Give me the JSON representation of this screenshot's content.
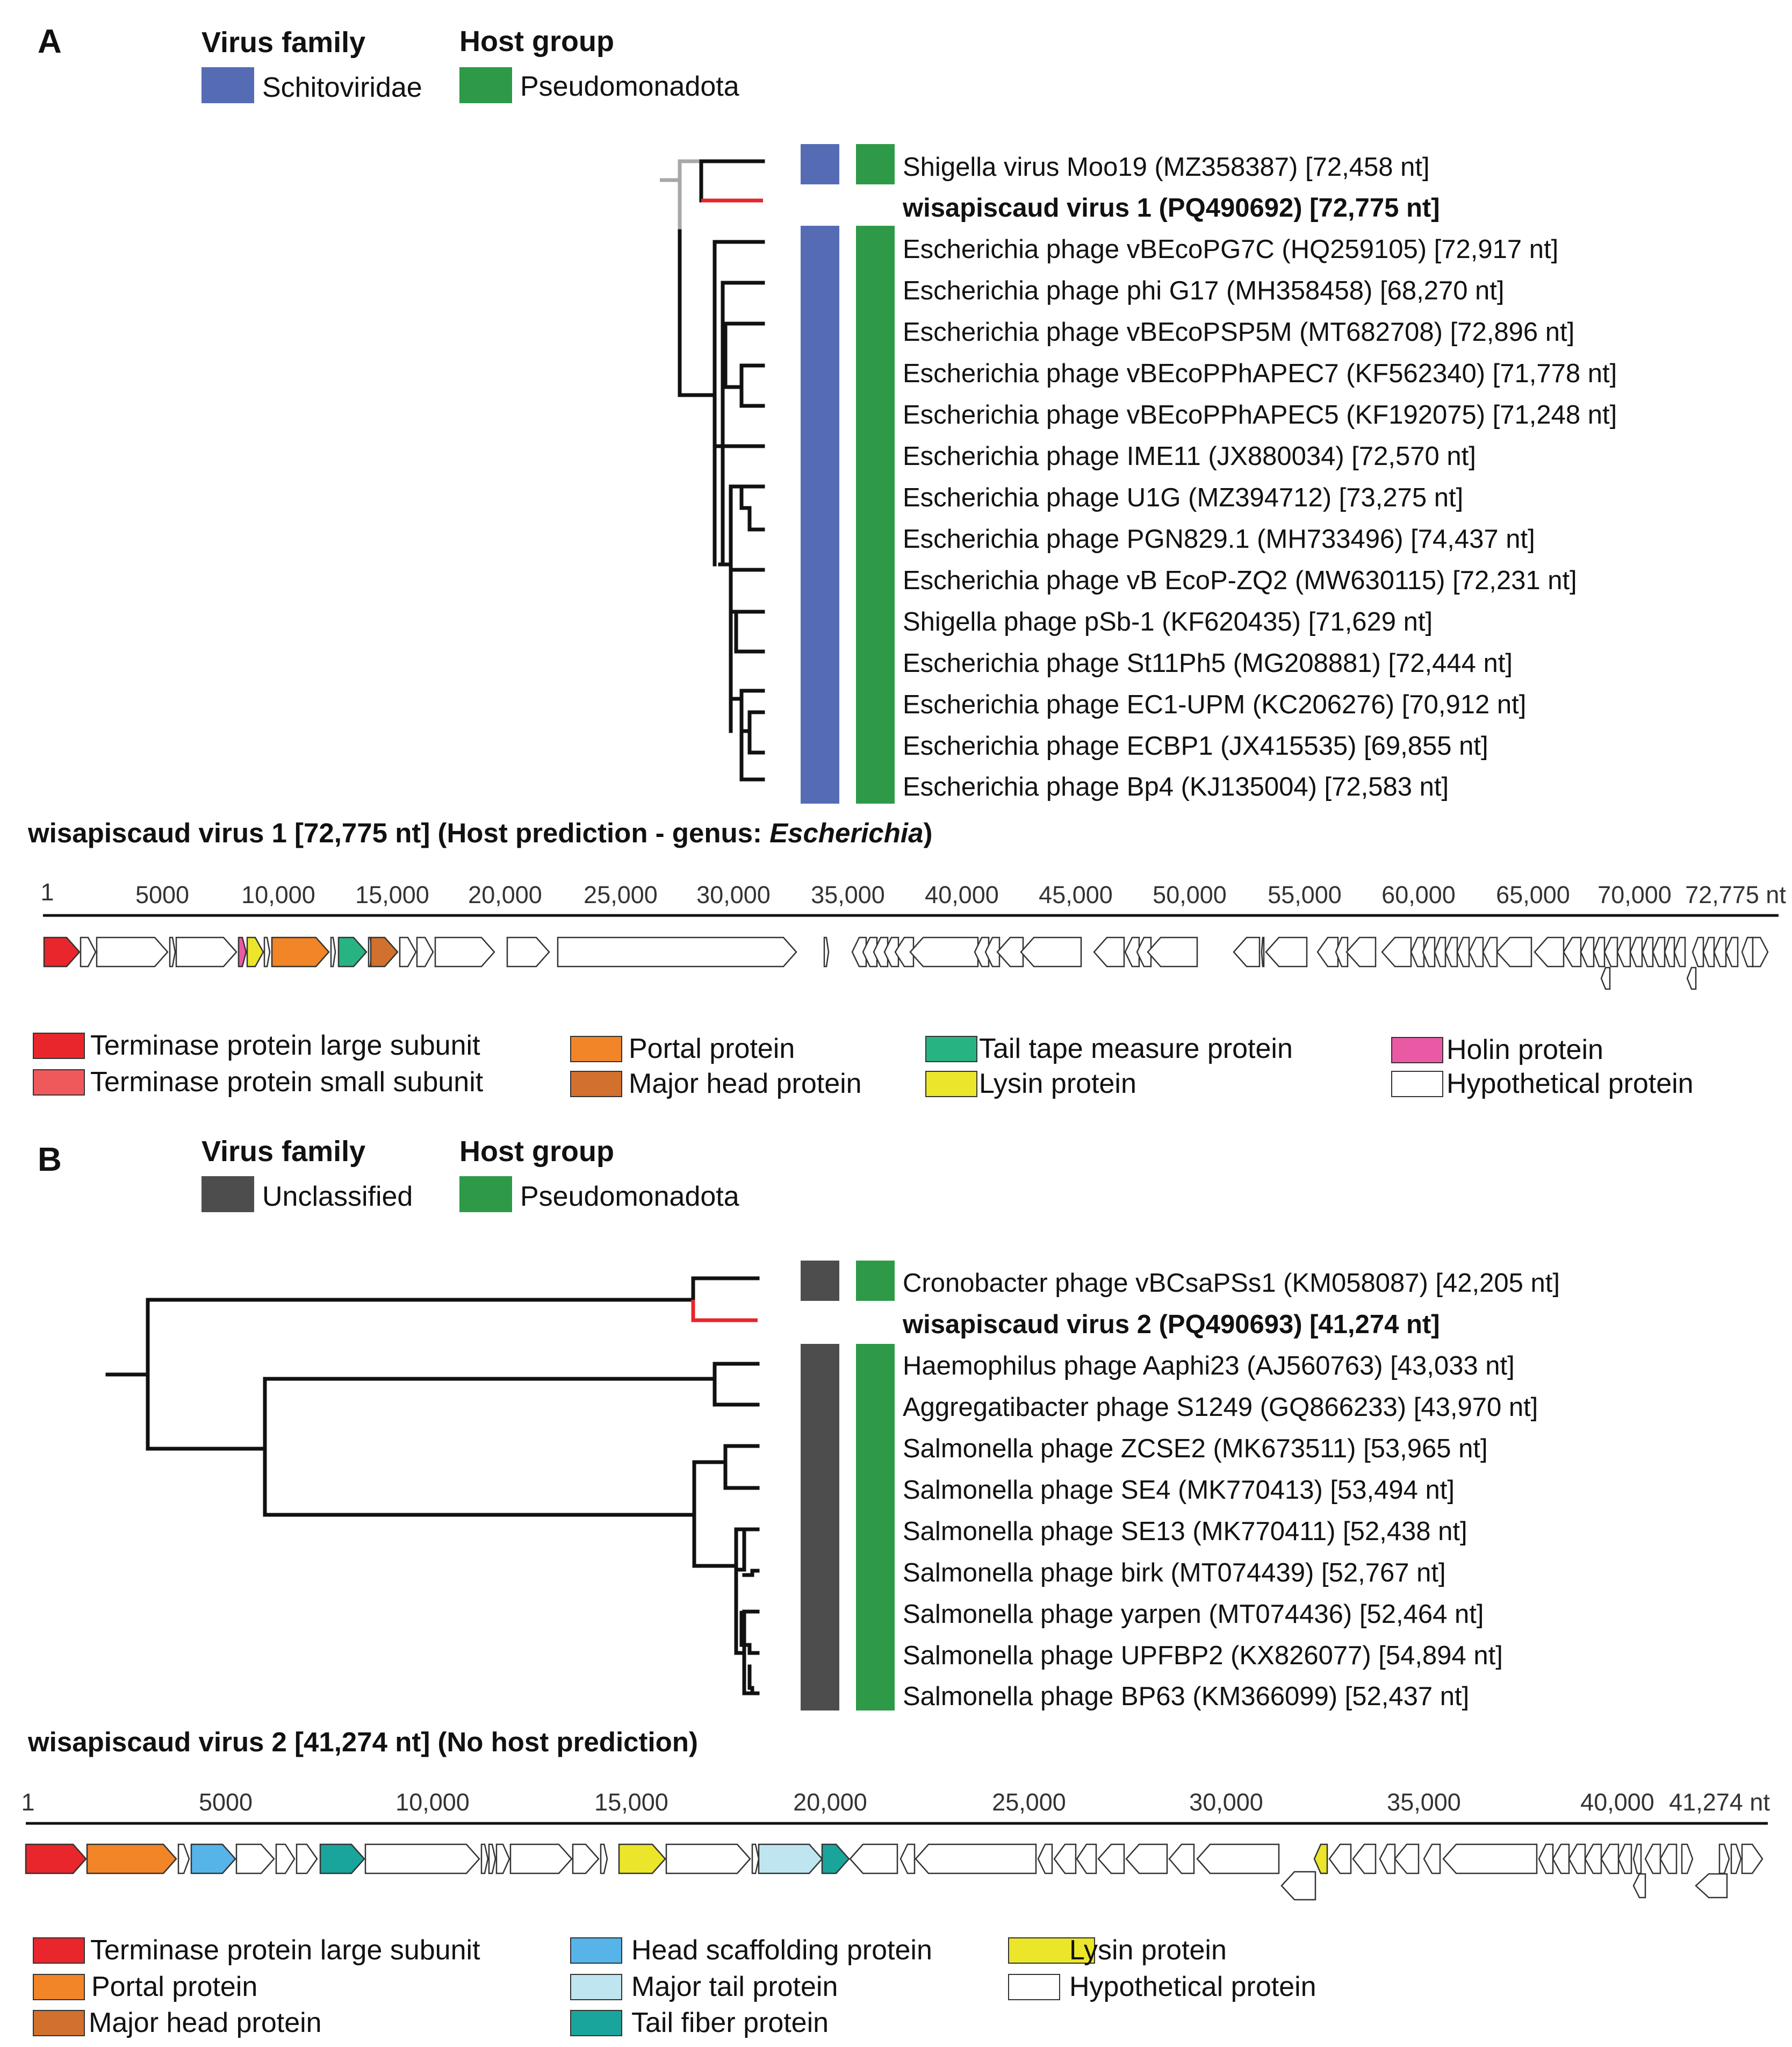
{
  "panel_a": {
    "letter": "A",
    "legend_family_title": "Virus family",
    "legend_host_title": "Host group",
    "family_label": "Schitoviridae",
    "host_label": "Pseudomonadota",
    "family_color": "#556cb5",
    "host_color": "#2e9a48",
    "taxa": [
      "Shigella virus Moo19 (MZ358387) [72,458 nt]",
      "wisapiscaud virus 1 (PQ490692) [72,775 nt]",
      "Escherichia phage vBEcoPG7C (HQ259105) [72,917 nt]",
      "Escherichia phage phi G17 (MH358458) [68,270 nt]",
      "Escherichia phage vBEcoPSP5M (MT682708) [72,896 nt]",
      "Escherichia phage vBEcoPPhAPEC7 (KF562340) [71,778 nt]",
      "Escherichia phage vBEcoPPhAPEC5 (KF192075) [71,248 nt]",
      "Escherichia phage IME11 (JX880034) [72,570 nt]",
      "Escherichia phage U1G (MZ394712) [73,275 nt]",
      "Escherichia phage PGN829.1 (MH733496) [74,437 nt]",
      "Escherichia phage vB EcoP-ZQ2 (MW630115) [72,231 nt]",
      "Shigella phage pSb-1 (KF620435) [71,629 nt]",
      "Escherichia phage St11Ph5 (MG208881) [72,444 nt]",
      "Escherichia phage EC1-UPM (KC206276) [70,912 nt]",
      "Escherichia phage ECBP1 (JX415535) [69,855 nt]",
      "Escherichia phage Bp4 (KJ135004) [72,583 nt]"
    ],
    "genome_title_prefix": "wisapiscaud virus 1 [72,775 nt] (Host prediction - genus: ",
    "genome_title_genus": "Escherichia",
    "genome_title_suffix": ")",
    "genome_length": 72775,
    "ticks": [
      "1",
      "5000",
      "10,000",
      "15,000",
      "20,000",
      "25,000",
      "30,000",
      "35,000",
      "40,000",
      "45,000",
      "50,000",
      "55,000",
      "60,000",
      "65,000",
      "70,000",
      "72,775 nt"
    ],
    "gene_legend": [
      {
        "label": "Terminase protein large subunit",
        "color": "#e8262b"
      },
      {
        "label": "Terminase protein small subunit",
        "color": "#f0595c"
      },
      {
        "label": "Portal protein",
        "color": "#f28527"
      },
      {
        "label": "Major head protein",
        "color": "#d2702e"
      },
      {
        "label": "Tail tape measure protein",
        "color": "#28b482"
      },
      {
        "label": "Lysin protein",
        "color": "#ebe62a"
      },
      {
        "label": "Holin protein",
        "color": "#ea5aa4"
      },
      {
        "label": "Hypothetical protein",
        "color": "#ffffff"
      }
    ]
  },
  "panel_b": {
    "letter": "B",
    "legend_family_title": "Virus family",
    "legend_host_title": "Host group",
    "family_label": "Unclassified",
    "host_label": "Pseudomonadota",
    "family_color": "#4d4d4d",
    "host_color": "#2e9a48",
    "taxa": [
      "Cronobacter phage vBCsaPSs1 (KM058087) [42,205 nt]",
      "wisapiscaud virus 2 (PQ490693) [41,274 nt]",
      "Haemophilus phage Aaphi23 (AJ560763) [43,033 nt]",
      "Aggregatibacter phage S1249 (GQ866233) [43,970 nt]",
      "Salmonella phage ZCSE2 (MK673511) [53,965 nt]",
      "Salmonella phage SE4 (MK770413) [53,494 nt]",
      "Salmonella phage SE13 (MK770411) [52,438 nt]",
      "Salmonella phage birk (MT074439) [52,767 nt]",
      "Salmonella phage yarpen (MT074436) [52,464 nt]",
      "Salmonella phage UPFBP2 (KX826077) [54,894 nt]",
      "Salmonella phage BP63 (KM366099) [52,437 nt]"
    ],
    "genome_title": "wisapiscaud virus 2 [41,274 nt] (No host prediction)",
    "genome_length": 41274,
    "ticks": [
      "1",
      "5000",
      "10,000",
      "15,000",
      "20,000",
      "25,000",
      "30,000",
      "35,000",
      "40,000",
      "41,274 nt"
    ],
    "gene_legend": [
      {
        "label": "Terminase protein large subunit",
        "color": "#e8262b"
      },
      {
        "label": "Portal protein",
        "color": "#f28527"
      },
      {
        "label": "Major head protein",
        "color": "#d2702e"
      },
      {
        "label": "Head scaffolding protein",
        "color": "#56b4e9"
      },
      {
        "label": "Major tail protein",
        "color": "#bfe6f0"
      },
      {
        "label": "Tail fiber protein",
        "color": "#1aa59c"
      },
      {
        "label": "Lysin protein",
        "color": "#ebe62a"
      },
      {
        "label": "Hypothetical protein",
        "color": "#ffffff"
      }
    ]
  }
}
